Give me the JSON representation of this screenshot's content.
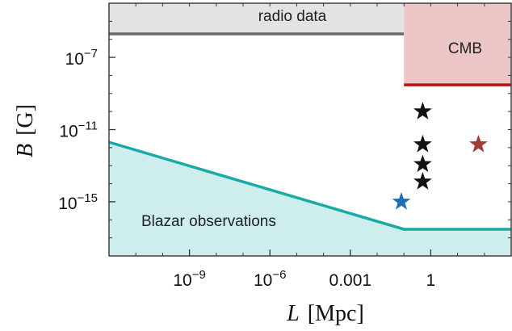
{
  "chart_data": {
    "type": "area",
    "xlabel": {
      "symbol": "L",
      "unit": "[Mpc]"
    },
    "ylabel": {
      "symbol": "B",
      "unit": "[G]"
    },
    "xscale": "log",
    "yscale": "log",
    "xlim": [
      1e-12,
      1000.0
    ],
    "ylim": [
      1e-18,
      0.0001
    ],
    "grid": false,
    "legend": "none",
    "x_ticks": [
      {
        "value": 1e-09,
        "base": "10",
        "exp": "−9"
      },
      {
        "value": 1e-06,
        "base": "10",
        "exp": "−6"
      },
      {
        "value": 0.001,
        "label": "0.001"
      },
      {
        "value": 1,
        "label": "1"
      }
    ],
    "y_ticks": [
      {
        "value": 1e-07,
        "base": "10",
        "exp": "−7"
      },
      {
        "value": 1e-11,
        "base": "10",
        "exp": "−11"
      },
      {
        "value": 1e-15,
        "base": "10",
        "exp": "−15"
      }
    ],
    "regions": [
      {
        "label": "radio data",
        "boundary": [
          [
            1e-12,
            2e-06
          ],
          [
            0.1,
            2e-06
          ]
        ],
        "fill": "upper",
        "fill_color": "#e3e3e3",
        "line_color": "#6a6a6a"
      },
      {
        "label": "CMB",
        "boundary": [
          [
            0.1,
            3e-09
          ],
          [
            1000,
            3e-09
          ]
        ],
        "fill": "upper",
        "fill_color": "#ecc6c6",
        "line_color": "#b81414"
      },
      {
        "label": "Blazar observations",
        "boundary": [
          [
            1e-12,
            2e-12
          ],
          [
            0.1,
            3e-17
          ],
          [
            1000,
            3e-17
          ]
        ],
        "fill": "lower",
        "fill_color": "#cdeeed",
        "line_color": "#19aaa6"
      }
    ],
    "points": [
      {
        "x": 0.5,
        "y": 1e-10,
        "marker": "star",
        "color": "#111111"
      },
      {
        "x": 0.5,
        "y": 1.5e-12,
        "marker": "star",
        "color": "#111111"
      },
      {
        "x": 0.5,
        "y": 1.2e-13,
        "marker": "star",
        "color": "#111111"
      },
      {
        "x": 0.5,
        "y": 1.3e-14,
        "marker": "star",
        "color": "#111111"
      },
      {
        "x": 0.08,
        "y": 1e-15,
        "marker": "star",
        "color": "#1f6fb5"
      },
      {
        "x": 60,
        "y": 1.5e-12,
        "marker": "star",
        "color": "#a23b36"
      }
    ]
  }
}
